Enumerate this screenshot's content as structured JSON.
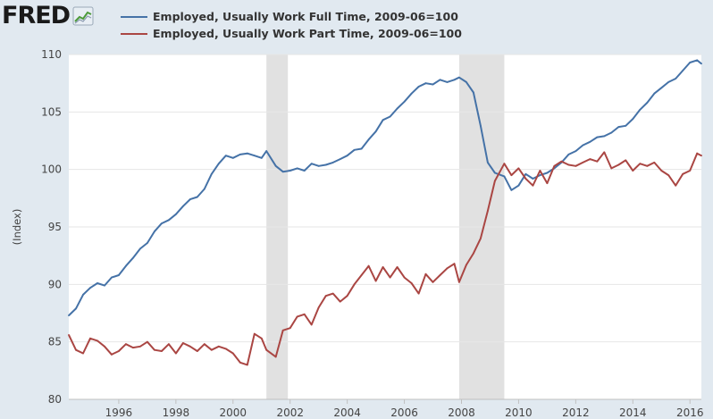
{
  "brand": {
    "logo_text": "FRED"
  },
  "colors": {
    "series1": "#4572a7",
    "series2": "#aa4643",
    "recession": "#e1e1e1"
  },
  "chart_data": {
    "type": "line",
    "title": "",
    "xlabel": "",
    "ylabel": "(Index)",
    "xlim": [
      1994.25,
      2016.4
    ],
    "ylim": [
      80,
      110
    ],
    "y_ticks": [
      80,
      85,
      90,
      95,
      100,
      105,
      110
    ],
    "x_ticks": [
      1996,
      1998,
      2000,
      2002,
      2004,
      2006,
      2008,
      2010,
      2012,
      2014,
      2016
    ],
    "grid": "horizontal",
    "recessions": [
      [
        2001.17,
        2001.92
      ],
      [
        2007.92,
        2009.5
      ]
    ],
    "series": [
      {
        "name": "Employed, Usually Work Full Time, 2009-06=100",
        "x": [
          1994.25,
          1994.5,
          1994.75,
          1995.0,
          1995.25,
          1995.5,
          1995.75,
          1996.0,
          1996.25,
          1996.5,
          1996.75,
          1997.0,
          1997.25,
          1997.5,
          1997.75,
          1998.0,
          1998.25,
          1998.5,
          1998.75,
          1999.0,
          1999.25,
          1999.5,
          1999.75,
          2000.0,
          2000.25,
          2000.5,
          2000.75,
          2001.0,
          2001.17,
          2001.5,
          2001.75,
          2002.0,
          2002.25,
          2002.5,
          2002.75,
          2003.0,
          2003.25,
          2003.5,
          2003.75,
          2004.0,
          2004.25,
          2004.5,
          2004.75,
          2005.0,
          2005.25,
          2005.5,
          2005.75,
          2006.0,
          2006.25,
          2006.5,
          2006.75,
          2007.0,
          2007.25,
          2007.5,
          2007.75,
          2007.92,
          2008.17,
          2008.42,
          2008.67,
          2008.92,
          2009.17,
          2009.5,
          2009.75,
          2010.0,
          2010.25,
          2010.5,
          2010.75,
          2011.0,
          2011.25,
          2011.5,
          2011.75,
          2012.0,
          2012.25,
          2012.5,
          2012.75,
          2013.0,
          2013.25,
          2013.5,
          2013.75,
          2014.0,
          2014.25,
          2014.5,
          2014.75,
          2015.0,
          2015.25,
          2015.5,
          2015.75,
          2016.0,
          2016.25,
          2016.4
        ],
        "values": [
          87.3,
          87.9,
          89.1,
          89.7,
          90.1,
          89.9,
          90.6,
          90.8,
          91.6,
          92.3,
          93.1,
          93.6,
          94.6,
          95.3,
          95.6,
          96.1,
          96.8,
          97.4,
          97.6,
          98.3,
          99.6,
          100.5,
          101.2,
          101.0,
          101.3,
          101.4,
          101.2,
          101.0,
          101.6,
          100.3,
          99.8,
          99.9,
          100.1,
          99.9,
          100.5,
          100.3,
          100.4,
          100.6,
          100.9,
          101.2,
          101.7,
          101.8,
          102.6,
          103.3,
          104.3,
          104.6,
          105.3,
          105.9,
          106.6,
          107.2,
          107.5,
          107.4,
          107.8,
          107.6,
          107.8,
          108.0,
          107.6,
          106.7,
          103.8,
          100.6,
          99.7,
          99.4,
          98.2,
          98.6,
          99.6,
          99.2,
          99.5,
          99.7,
          100.1,
          100.6,
          101.3,
          101.6,
          102.1,
          102.4,
          102.8,
          102.9,
          103.2,
          103.7,
          103.8,
          104.4,
          105.2,
          105.8,
          106.6,
          107.1,
          107.6,
          107.9,
          108.6,
          109.3,
          109.5,
          109.2
        ]
      },
      {
        "name": "Employed, Usually Work Part Time, 2009-06=100",
        "x": [
          1994.25,
          1994.5,
          1994.75,
          1995.0,
          1995.25,
          1995.5,
          1995.75,
          1996.0,
          1996.25,
          1996.5,
          1996.75,
          1997.0,
          1997.25,
          1997.5,
          1997.75,
          1998.0,
          1998.25,
          1998.5,
          1998.75,
          1999.0,
          1999.25,
          1999.5,
          1999.75,
          2000.0,
          2000.25,
          2000.5,
          2000.75,
          2001.0,
          2001.17,
          2001.5,
          2001.75,
          2002.0,
          2002.25,
          2002.5,
          2002.75,
          2003.0,
          2003.25,
          2003.5,
          2003.75,
          2004.0,
          2004.25,
          2004.5,
          2004.75,
          2005.0,
          2005.25,
          2005.5,
          2005.75,
          2006.0,
          2006.25,
          2006.5,
          2006.75,
          2007.0,
          2007.25,
          2007.5,
          2007.75,
          2007.92,
          2008.17,
          2008.42,
          2008.67,
          2008.92,
          2009.17,
          2009.5,
          2009.75,
          2010.0,
          2010.25,
          2010.5,
          2010.75,
          2011.0,
          2011.25,
          2011.5,
          2011.75,
          2012.0,
          2012.25,
          2012.5,
          2012.75,
          2013.0,
          2013.25,
          2013.5,
          2013.75,
          2014.0,
          2014.25,
          2014.5,
          2014.75,
          2015.0,
          2015.25,
          2015.5,
          2015.75,
          2016.0,
          2016.25,
          2016.4
        ],
        "values": [
          85.6,
          84.3,
          84.0,
          85.3,
          85.1,
          84.6,
          83.9,
          84.2,
          84.8,
          84.5,
          84.6,
          85.0,
          84.3,
          84.2,
          84.8,
          84.0,
          84.9,
          84.6,
          84.2,
          84.8,
          84.3,
          84.6,
          84.4,
          84.0,
          83.2,
          83.0,
          85.7,
          85.3,
          84.3,
          83.7,
          86.0,
          86.2,
          87.2,
          87.4,
          86.5,
          88.0,
          89.0,
          89.2,
          88.5,
          89.0,
          90.0,
          90.8,
          91.6,
          90.3,
          91.5,
          90.6,
          91.5,
          90.6,
          90.1,
          89.2,
          90.9,
          90.2,
          90.8,
          91.4,
          91.8,
          90.2,
          91.7,
          92.7,
          94.0,
          96.4,
          99.0,
          100.5,
          99.5,
          100.1,
          99.2,
          98.6,
          99.9,
          98.8,
          100.3,
          100.7,
          100.4,
          100.3,
          100.6,
          100.9,
          100.7,
          101.5,
          100.1,
          100.4,
          100.8,
          99.9,
          100.5,
          100.3,
          100.6,
          99.9,
          99.5,
          98.6,
          99.6,
          99.9,
          101.4,
          101.2
        ]
      }
    ]
  }
}
